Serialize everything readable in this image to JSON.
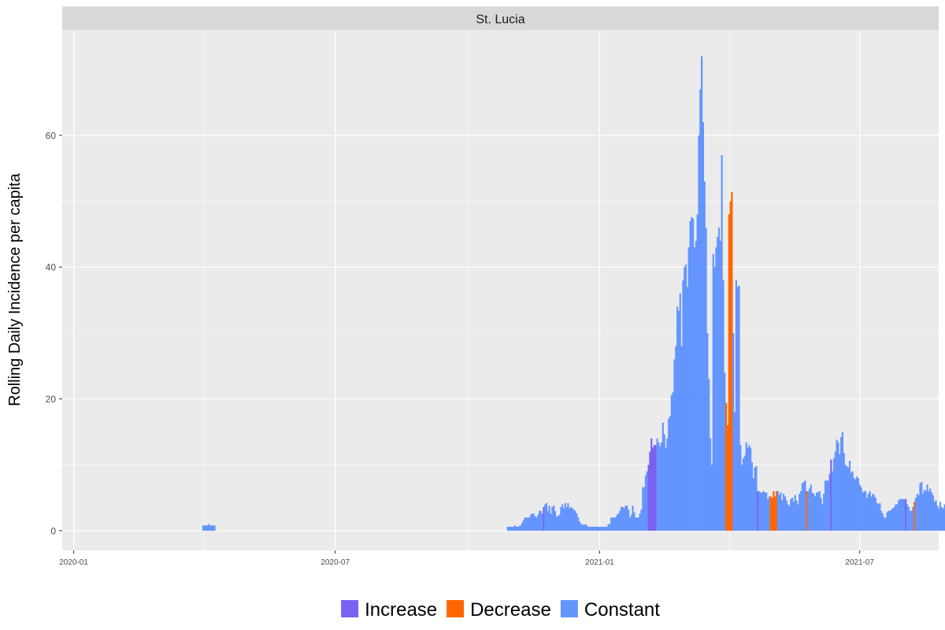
{
  "chart_data": {
    "type": "bar",
    "panel_title": "St. Lucia",
    "ylabel": "Rolling Daily Incidence per capita",
    "xlabel": "",
    "x_range": [
      "2019-12-24",
      "2021-08-25"
    ],
    "ylim": [
      -3,
      76
    ],
    "x_ticks": [
      "2020-01",
      "2020-07",
      "2021-01",
      "2021-07"
    ],
    "y_ticks": [
      "0",
      "20",
      "40",
      "60"
    ],
    "y_tick_values": [
      0,
      20,
      40,
      60
    ],
    "grid": true,
    "legend_position": "bottom",
    "legend": [
      {
        "label": "Increase",
        "color": "#7b61f0"
      },
      {
        "label": "Decrease",
        "color": "#ff6600"
      },
      {
        "label": "Constant",
        "color": "#6495ff"
      }
    ],
    "series": [
      {
        "name": "Increase",
        "color": "#7b61f0"
      },
      {
        "name": "Decrease",
        "color": "#ff6600"
      },
      {
        "name": "Constant",
        "color": "#6495ff"
      }
    ],
    "status_codes": {
      "i": "Increase",
      "d": "Decrease",
      "c": "Constant"
    },
    "segments": [
      {
        "start": "2020-03-31",
        "values": [
          0.8,
          0.8,
          0.8,
          0.8,
          1.0,
          0.8,
          0.8,
          0.8,
          0.8
        ],
        "status": "ccccccccc"
      },
      {
        "start": "2020-10-29",
        "values": [
          0.6,
          0.6,
          0.6,
          0.6,
          0.6,
          0.8,
          0.6,
          0.6,
          0.7,
          0.8,
          1.2,
          1.6,
          2.0,
          2.0,
          2.0,
          2.0,
          2.4,
          2.6,
          2.6,
          2.2,
          2.0,
          2.4,
          3.0,
          3.0,
          2.6,
          3.6,
          4.0,
          4.2,
          3.0,
          3.8,
          2.6,
          3.6,
          3.8,
          3.0,
          2.2,
          2.2,
          2.4,
          3.6,
          4.0,
          3.4,
          4.2,
          3.6,
          4.2,
          3.4,
          3.6,
          3.4,
          3.2,
          3.0,
          2.6,
          2.0,
          1.4,
          1.0,
          1.0,
          0.8,
          1.0,
          0.8,
          0.6,
          0.6,
          0.6,
          0.6,
          0.6,
          0.6,
          0.6,
          0.6,
          0.6,
          0.6,
          0.6,
          0.6,
          0.6,
          0.6,
          1.0,
          1.0,
          2.0,
          2.0,
          2.0,
          2.0,
          2.4,
          2.6,
          3.0,
          3.6,
          3.6,
          3.4,
          3.8,
          3.8,
          3.2,
          2.0,
          2.4,
          3.8,
          2.8,
          2.0,
          2.0,
          2.0,
          2.6,
          3.2,
          6.6,
          6.6,
          8.4,
          9.0,
          10.0,
          12.0,
          14.0,
          12.6,
          13.0,
          13.0,
          14.0,
          13.4,
          12.8,
          13.4,
          16.4,
          14.6,
          12.6,
          14.0,
          17.0,
          17.4,
          20.6,
          21.0,
          26.0,
          28.0,
          34.0,
          33.4,
          36.0,
          28.0,
          38.0,
          40.0,
          40.4,
          37.0,
          43.0,
          47.0,
          47.6,
          47.4,
          43.0,
          44.0,
          48.0,
          60.0,
          67.0,
          72.0,
          62.0,
          53.0,
          46.0,
          30.0,
          23.0,
          14.0,
          10.0,
          42.0,
          40.0,
          43.0,
          44.6,
          46.0,
          44.0,
          57.0,
          38.0,
          24.0,
          19.4,
          16.0,
          48.0,
          50.0,
          51.4,
          30.0,
          18.0,
          38.0,
          37.0,
          37.2,
          13.0,
          10.0,
          11.0,
          11.4,
          13.4,
          12.6,
          13.0,
          12.6,
          10.4,
          8.0,
          9.6,
          9.8,
          6.0,
          6.0,
          5.8,
          5.8,
          6.0,
          5.8,
          5.8,
          4.8,
          5.2,
          5.2,
          5.0,
          6.0,
          5.2,
          6.0,
          6.0,
          5.4,
          5.8,
          4.6,
          5.6,
          5.2,
          4.6,
          4.0,
          3.8,
          4.8,
          5.0,
          4.4,
          5.4,
          4.6,
          4.0,
          5.6,
          6.0,
          7.2,
          7.4,
          7.6,
          6.0,
          6.0,
          6.4,
          7.0,
          5.8,
          5.6,
          5.2,
          5.8,
          5.8,
          6.0,
          5.0,
          4.0,
          5.6,
          7.6,
          7.6,
          7.6,
          8.6,
          10.8,
          9.0,
          11.0,
          12.0,
          13.8,
          13.4,
          11.6,
          14.2,
          15.0,
          11.8,
          10.0,
          9.8,
          9.6,
          10.6,
          8.8,
          9.0,
          8.0,
          7.8,
          8.2,
          8.0,
          7.0,
          6.6,
          5.8,
          6.0,
          6.0,
          5.0,
          5.6,
          6.0,
          5.2,
          5.6,
          5.4,
          5.0,
          4.2,
          4.0,
          4.2,
          3.0,
          2.6,
          2.0,
          2.0,
          2.8,
          3.0,
          3.0,
          3.2,
          3.4,
          3.6,
          4.0,
          4.0,
          4.6,
          4.8,
          4.8,
          4.8,
          4.8,
          4.8,
          4.0,
          3.6,
          3.0,
          3.0,
          3.6,
          4.4,
          5.0,
          5.6,
          5.4,
          7.2,
          7.4,
          5.6,
          6.2,
          6.0,
          7.0,
          6.0,
          6.4,
          5.8,
          5.4,
          4.4,
          4.6,
          3.8,
          3.4,
          4.4,
          3.6,
          3.4,
          4.0,
          3.2,
          3.6,
          3.4,
          3.4,
          5.0,
          6.6,
          6.6,
          7.0,
          8.4,
          9.4,
          10.0,
          9.0
        ],
        "status": "cccccccccccccccccccccccccicccccccccccccccccccccccccccccccccccccccccccccccccccccccccccccccccccccccciiiiiiccccccccccccccccccccccccccccccccccccccccccccccccdddddccccccccccccccccciccccccccdddddccccccccccccccccccccdccccccccccccccccicccccccccccccccccccccccccccccccccccccccccccccccccccicccccdccccccccccccccccccccccccccccccccccccccccccccccccccccccccccccccccc"
      }
    ]
  }
}
